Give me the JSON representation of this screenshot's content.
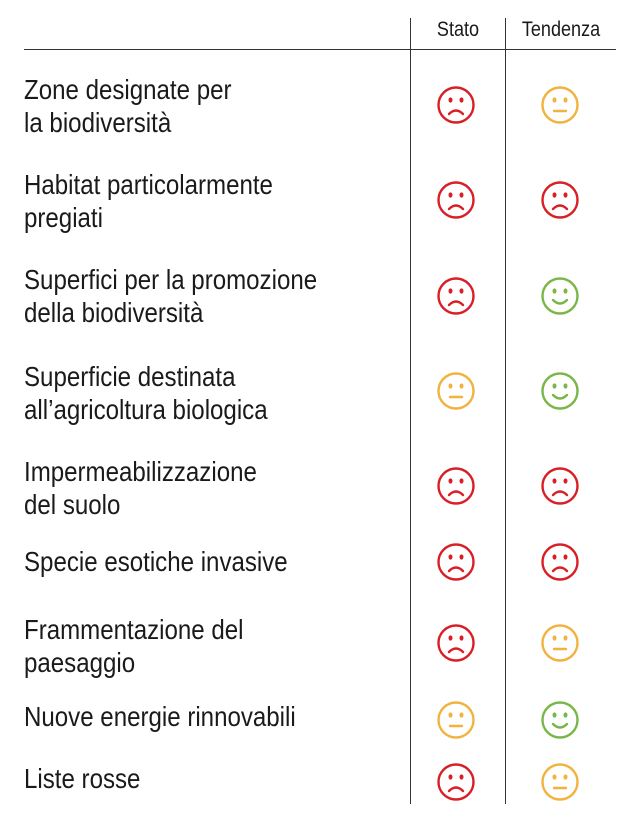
{
  "header": {
    "stato": "Stato",
    "tendenza": "Tendenza"
  },
  "colors": {
    "red": "#d91f26",
    "yellow": "#f2b23e",
    "green": "#7ab648",
    "lines": "#333333"
  },
  "rows": [
    {
      "label": "Zone designate per\nla biodiversità",
      "stato": "red-sad-face-icon",
      "tendenza": "yellow-neutral-face-icon"
    },
    {
      "label": "Habitat particolarmente\npregiati",
      "stato": "red-sad-face-icon",
      "tendenza": "red-sad-face-icon"
    },
    {
      "label": "Superfici per la promozione\ndella biodiversità",
      "stato": "red-sad-face-icon",
      "tendenza": "green-happy-face-icon"
    },
    {
      "label": "Superficie destinata\nall’agricoltura biologica",
      "stato": "yellow-neutral-face-icon",
      "tendenza": "green-happy-face-icon"
    },
    {
      "label": "Impermeabilizzazione\ndel suolo",
      "stato": "red-sad-face-icon",
      "tendenza": "red-sad-face-icon"
    },
    {
      "label": "Specie esotiche invasive",
      "stato": "red-sad-face-icon",
      "tendenza": "red-sad-face-icon"
    },
    {
      "label": "Frammentazione del\npaesaggio",
      "stato": "red-sad-face-icon",
      "tendenza": "yellow-neutral-face-icon"
    },
    {
      "label": "Nuove energie rinnovabili",
      "stato": "yellow-neutral-face-icon",
      "tendenza": "green-happy-face-icon"
    },
    {
      "label": "Liste rosse",
      "stato": "red-sad-face-icon",
      "tendenza": "yellow-neutral-face-icon"
    }
  ]
}
